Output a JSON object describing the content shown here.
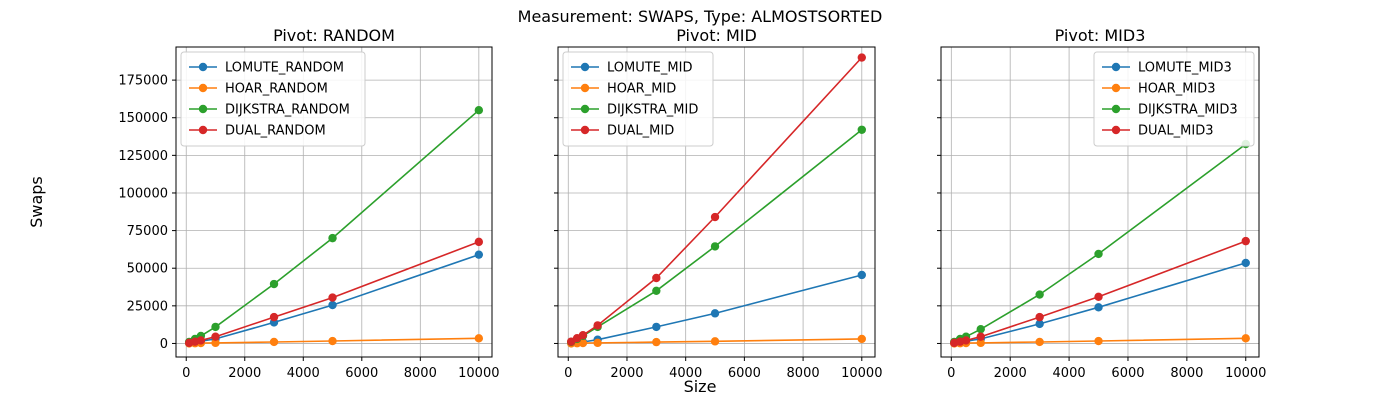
{
  "figure": {
    "suptitle": "Measurement: SWAPS, Type: ALMOSTSORTED",
    "xlabel": "Size",
    "ylabel": "Swaps"
  },
  "colors": {
    "LOMUTE": "#1f77b4",
    "HOAR": "#ff7f0e",
    "DIJKSTRA": "#2ca02c",
    "DUAL": "#d62728",
    "grid": "#b0b0b0",
    "axes": "#000000"
  },
  "chart_data": [
    {
      "type": "line",
      "title": "Pivot: RANDOM",
      "x": [
        100,
        300,
        500,
        1000,
        3000,
        5000,
        10000
      ],
      "xlim": [
        -350,
        10450
      ],
      "ylim": [
        -9000,
        197000
      ],
      "xticks": [
        0,
        2000,
        4000,
        6000,
        8000,
        10000
      ],
      "yticks": [
        0,
        25000,
        50000,
        75000,
        100000,
        125000,
        150000,
        175000
      ],
      "show_yticklabels": true,
      "grid": true,
      "legend_position": "top-left",
      "series": [
        {
          "name": "LOMUTE_RANDOM",
          "key": "LOMUTE",
          "values": [
            300,
            900,
            1500,
            3000,
            14000,
            25500,
            59000
          ]
        },
        {
          "name": "HOAR_RANDOM",
          "key": "HOAR",
          "values": [
            50,
            150,
            250,
            400,
            1000,
            1600,
            3400
          ]
        },
        {
          "name": "DIJKSTRA_RANDOM",
          "key": "DIJKSTRA",
          "values": [
            1000,
            3000,
            5000,
            11000,
            39500,
            70000,
            155000
          ]
        },
        {
          "name": "DUAL_RANDOM",
          "key": "DUAL",
          "values": [
            400,
            1200,
            2000,
            4500,
            17500,
            30500,
            67500
          ]
        }
      ]
    },
    {
      "type": "line",
      "title": "Pivot: MID",
      "x": [
        100,
        300,
        500,
        1000,
        3000,
        5000,
        10000
      ],
      "xlim": [
        -350,
        10450
      ],
      "ylim": [
        -9000,
        197000
      ],
      "xticks": [
        0,
        2000,
        4000,
        6000,
        8000,
        10000
      ],
      "yticks": [
        0,
        25000,
        50000,
        75000,
        100000,
        125000,
        150000,
        175000
      ],
      "show_yticklabels": false,
      "grid": true,
      "legend_position": "top-left",
      "series": [
        {
          "name": "LOMUTE_MID",
          "key": "LOMUTE",
          "values": [
            200,
            600,
            1000,
            2500,
            11000,
            20000,
            45500
          ]
        },
        {
          "name": "HOAR_MID",
          "key": "HOAR",
          "values": [
            50,
            150,
            250,
            400,
            900,
            1400,
            3000
          ]
        },
        {
          "name": "DIJKSTRA_MID",
          "key": "DIJKSTRA",
          "values": [
            1000,
            3000,
            5000,
            11000,
            35000,
            64500,
            142000
          ]
        },
        {
          "name": "DUAL_MID",
          "key": "DUAL",
          "values": [
            1200,
            3500,
            5500,
            12000,
            43500,
            84000,
            190000
          ]
        }
      ]
    },
    {
      "type": "line",
      "title": "Pivot: MID3",
      "x": [
        100,
        300,
        500,
        1000,
        3000,
        5000,
        10000
      ],
      "xlim": [
        -350,
        10450
      ],
      "ylim": [
        -9000,
        197000
      ],
      "xticks": [
        0,
        2000,
        4000,
        6000,
        8000,
        10000
      ],
      "yticks": [
        0,
        25000,
        50000,
        75000,
        100000,
        125000,
        150000,
        175000
      ],
      "show_yticklabels": false,
      "grid": true,
      "legend_position": "top-right",
      "series": [
        {
          "name": "LOMUTE_MID3",
          "key": "LOMUTE",
          "values": [
            300,
            900,
            1500,
            3000,
            13000,
            24000,
            53500
          ]
        },
        {
          "name": "HOAR_MID3",
          "key": "HOAR",
          "values": [
            50,
            150,
            250,
            400,
            1000,
            1600,
            3400
          ]
        },
        {
          "name": "DIJKSTRA_MID3",
          "key": "DIJKSTRA",
          "values": [
            1000,
            3000,
            4500,
            9500,
            32500,
            59500,
            132500
          ]
        },
        {
          "name": "DUAL_MID3",
          "key": "DUAL",
          "values": [
            400,
            1200,
            2000,
            4500,
            17500,
            31000,
            68000
          ]
        }
      ]
    }
  ]
}
